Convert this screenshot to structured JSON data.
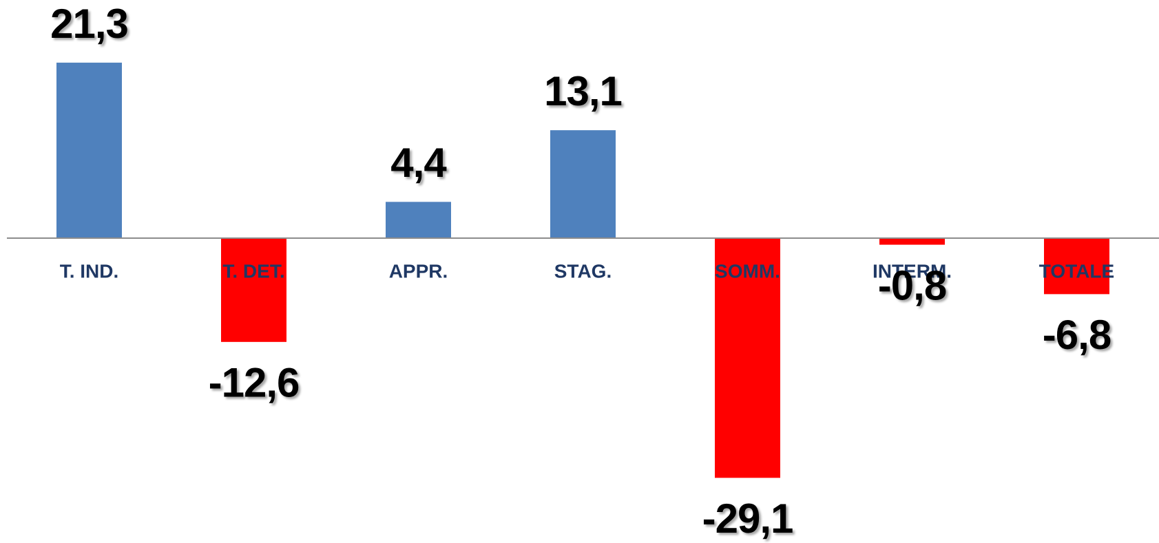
{
  "chart_data": {
    "type": "bar",
    "categories": [
      "T. IND.",
      "T. DET.",
      "APPR.",
      "STAG.",
      "SOMM.",
      "INTERM.",
      "TOTALE"
    ],
    "values": [
      21.3,
      -12.6,
      4.4,
      13.1,
      -29.1,
      -0.8,
      -6.8
    ],
    "value_labels": [
      "21,3",
      "-12,6",
      "4,4",
      "13,1",
      "-29,1",
      "-0,8",
      "-6,8"
    ],
    "colors": [
      "#4f81bd",
      "#ff0000",
      "#4f81bd",
      "#4f81bd",
      "#ff0000",
      "#ff0000",
      "#ff0000"
    ]
  }
}
